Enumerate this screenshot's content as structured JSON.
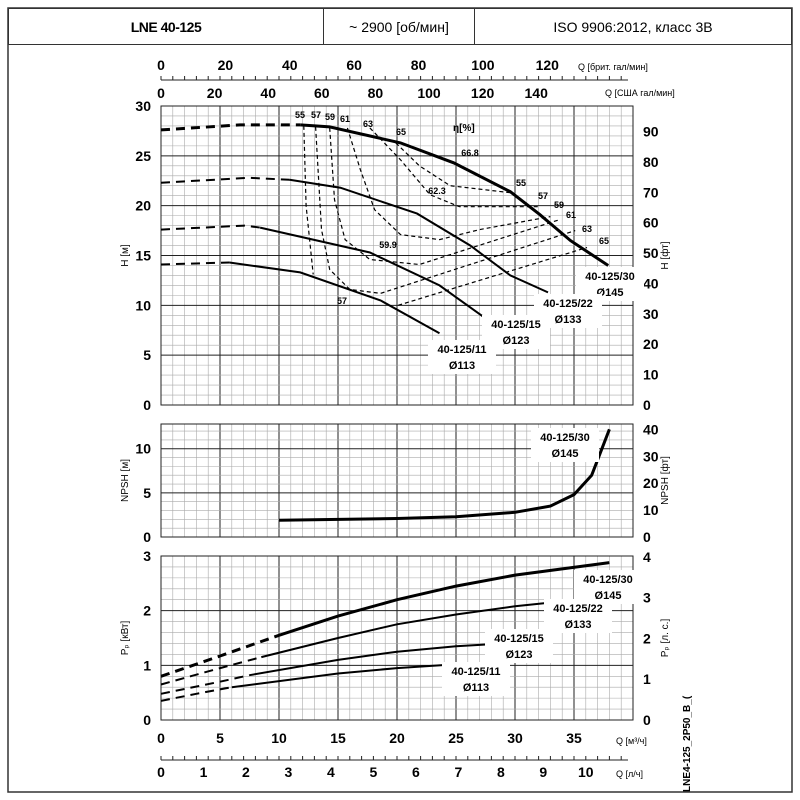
{
  "header": {
    "model": "LNE 40-125",
    "speed": "~ 2900 [об/мин]",
    "standard": "ISO 9906:2012, класс 3В"
  },
  "side_code": "LNE4-125_2P50_B_(",
  "chart_data": [
    {
      "type": "line",
      "name": "head",
      "ylabel": "H [м]",
      "ylabel_right": "H [фт]",
      "ylim": [
        0,
        30
      ],
      "ylim_right": [
        0,
        98.4
      ],
      "yticks": [
        0,
        5,
        10,
        15,
        20,
        25,
        30
      ],
      "yticks_right": [
        0,
        10,
        20,
        30,
        40,
        50,
        60,
        70,
        80,
        90
      ],
      "xlabel": "Q [м³/ч]",
      "xlim": [
        0,
        40
      ],
      "eta_label": "η[%]",
      "grid": true,
      "series": [
        {
          "name": "40-125/30",
          "diameter": "Ø145",
          "dashed_until": 11.8,
          "points": [
            [
              0,
              27.6
            ],
            [
              6.7,
              28.1
            ],
            [
              11.8,
              28.1
            ],
            [
              14.3,
              27.9
            ],
            [
              20.3,
              26.3
            ],
            [
              24.8,
              24.3
            ],
            [
              29.6,
              21.4
            ],
            [
              32.1,
              19.1
            ],
            [
              34.7,
              16.5
            ],
            [
              37.9,
              14.0
            ]
          ]
        },
        {
          "name": "40-125/22",
          "diameter": "Ø133",
          "dashed_until": 10.9,
          "points": [
            [
              0,
              22.3
            ],
            [
              7.5,
              22.8
            ],
            [
              10.9,
              22.6
            ],
            [
              15.2,
              21.8
            ],
            [
              21.7,
              19.2
            ],
            [
              26.2,
              16.0
            ],
            [
              29.6,
              13.0
            ],
            [
              32.8,
              11.3
            ]
          ]
        },
        {
          "name": "40-125/15",
          "diameter": "Ø123",
          "dashed_until": 8.4,
          "points": [
            [
              0,
              17.6
            ],
            [
              7.1,
              18.0
            ],
            [
              8.4,
              17.8
            ],
            [
              17.7,
              15.3
            ],
            [
              23.6,
              12.0
            ],
            [
              27.5,
              8.7
            ]
          ]
        },
        {
          "name": "40-125/11",
          "diameter": "Ø113",
          "dashed_until": 5.8,
          "points": [
            [
              0,
              14.1
            ],
            [
              5.8,
              14.3
            ],
            [
              11.8,
              13.3
            ],
            [
              18.6,
              10.5
            ],
            [
              23.6,
              7.2
            ]
          ]
        }
      ],
      "efficiency_contours": [
        {
          "eta": "55",
          "points": [
            [
              12.1,
              28.0
            ],
            [
              12.3,
              20
            ],
            [
              12.9,
              13.1
            ]
          ],
          "points_right": [
            [
              20.1,
              10.0
            ],
            [
              36.1,
              15.8
            ]
          ]
        },
        {
          "eta": "57",
          "points": [
            [
              13.1,
              27.9
            ],
            [
              13.6,
              17.6
            ],
            [
              14.3,
              13.6
            ],
            [
              16.0,
              11.6
            ],
            [
              18.6,
              11.2
            ],
            [
              35.1,
              17.5
            ]
          ]
        },
        {
          "eta": "59",
          "points": [
            [
              14.3,
              27.8
            ],
            [
              14.7,
              20.6
            ],
            [
              15.6,
              16.6
            ],
            [
              17.7,
              14.6
            ],
            [
              21.9,
              14.1
            ],
            [
              33.8,
              18.6
            ]
          ]
        },
        {
          "eta": "61",
          "points": [
            [
              15.8,
              27.8
            ],
            [
              16.9,
              23.6
            ],
            [
              18.1,
              19.6
            ],
            [
              20.3,
              17.1
            ],
            [
              23.6,
              16.6
            ],
            [
              27.0,
              17.6
            ],
            [
              33.0,
              18.9
            ]
          ]
        },
        {
          "eta": "63",
          "points": [
            [
              17.7,
              27.8
            ],
            [
              20.3,
              24.6
            ],
            [
              22.8,
              21.1
            ],
            [
              25.3,
              19.9
            ],
            [
              32.1,
              19.9
            ]
          ]
        },
        {
          "eta": "65",
          "points": [
            [
              19.9,
              26.3
            ],
            [
              21.9,
              24.0
            ],
            [
              24.5,
              22.0
            ],
            [
              29.6,
              21.3
            ]
          ]
        }
      ],
      "annotations": [
        "66.8",
        "62.3",
        "59.9",
        "57"
      ]
    },
    {
      "type": "line",
      "name": "npsh",
      "ylabel": "NPSH [м]",
      "ylabel_right": "NPSH [фт]",
      "ylim": [
        0,
        12.8
      ],
      "yticks": [
        0,
        5,
        10
      ],
      "yticks_right": [
        0,
        10,
        20,
        30,
        40
      ],
      "series": [
        {
          "name": "40-125/30",
          "diameter": "Ø145",
          "points": [
            [
              10,
              1.9
            ],
            [
              20,
              2.1
            ],
            [
              25,
              2.3
            ],
            [
              30,
              2.8
            ],
            [
              33,
              3.5
            ],
            [
              35,
              4.8
            ],
            [
              36.5,
              7.0
            ],
            [
              38,
              12.2
            ]
          ]
        }
      ]
    },
    {
      "type": "line",
      "name": "power",
      "ylabel": "Pₚ [кВт]",
      "ylabel_right": "Pₚ [л. с.]",
      "ylim": [
        0,
        3
      ],
      "yticks": [
        0,
        1,
        2,
        3
      ],
      "yticks_right": [
        0,
        1,
        2,
        3,
        4
      ],
      "series": [
        {
          "name": "40-125/30",
          "diameter": "Ø145",
          "dashed_until": 10,
          "points": [
            [
              0,
              0.8
            ],
            [
              5,
              1.17
            ],
            [
              10,
              1.55
            ],
            [
              15,
              1.9
            ],
            [
              20,
              2.2
            ],
            [
              25,
              2.45
            ],
            [
              30,
              2.65
            ],
            [
              38,
              2.88
            ]
          ]
        },
        {
          "name": "40-125/22",
          "diameter": "Ø133",
          "dashed_until": 8.5,
          "points": [
            [
              0,
              0.65
            ],
            [
              5,
              0.95
            ],
            [
              8.5,
              1.15
            ],
            [
              15,
              1.5
            ],
            [
              20,
              1.75
            ],
            [
              25,
              1.93
            ],
            [
              30,
              2.08
            ],
            [
              34.5,
              2.18
            ]
          ]
        },
        {
          "name": "40-125/15",
          "diameter": "Ø123",
          "dashed_until": 7.5,
          "points": [
            [
              0,
              0.48
            ],
            [
              5,
              0.7
            ],
            [
              7.5,
              0.82
            ],
            [
              15,
              1.1
            ],
            [
              20,
              1.25
            ],
            [
              25,
              1.35
            ],
            [
              29,
              1.4
            ]
          ]
        },
        {
          "name": "40-125/11",
          "diameter": "Ø113",
          "dashed_until": 6,
          "points": [
            [
              0,
              0.35
            ],
            [
              3,
              0.48
            ],
            [
              6,
              0.6
            ],
            [
              15,
              0.85
            ],
            [
              20,
              0.95
            ],
            [
              25,
              1.02
            ]
          ]
        }
      ]
    },
    {
      "type": "axis",
      "name": "flow_axes",
      "uk_gpm": {
        "label": "Q [брит. гал/мин]",
        "ticks": [
          0,
          20,
          40,
          60,
          80,
          100,
          120
        ]
      },
      "us_gpm": {
        "label": "Q [США гал/мин]",
        "ticks": [
          0,
          20,
          40,
          60,
          80,
          100,
          120,
          140
        ]
      },
      "m3h": {
        "label": "Q [м³/ч]",
        "ticks": [
          0,
          5,
          10,
          15,
          20,
          25,
          30,
          35
        ]
      },
      "ls": {
        "label": "Q [л/ч]",
        "ticks": [
          0,
          1,
          2,
          3,
          4,
          5,
          6,
          7,
          8,
          9,
          10
        ]
      }
    }
  ]
}
